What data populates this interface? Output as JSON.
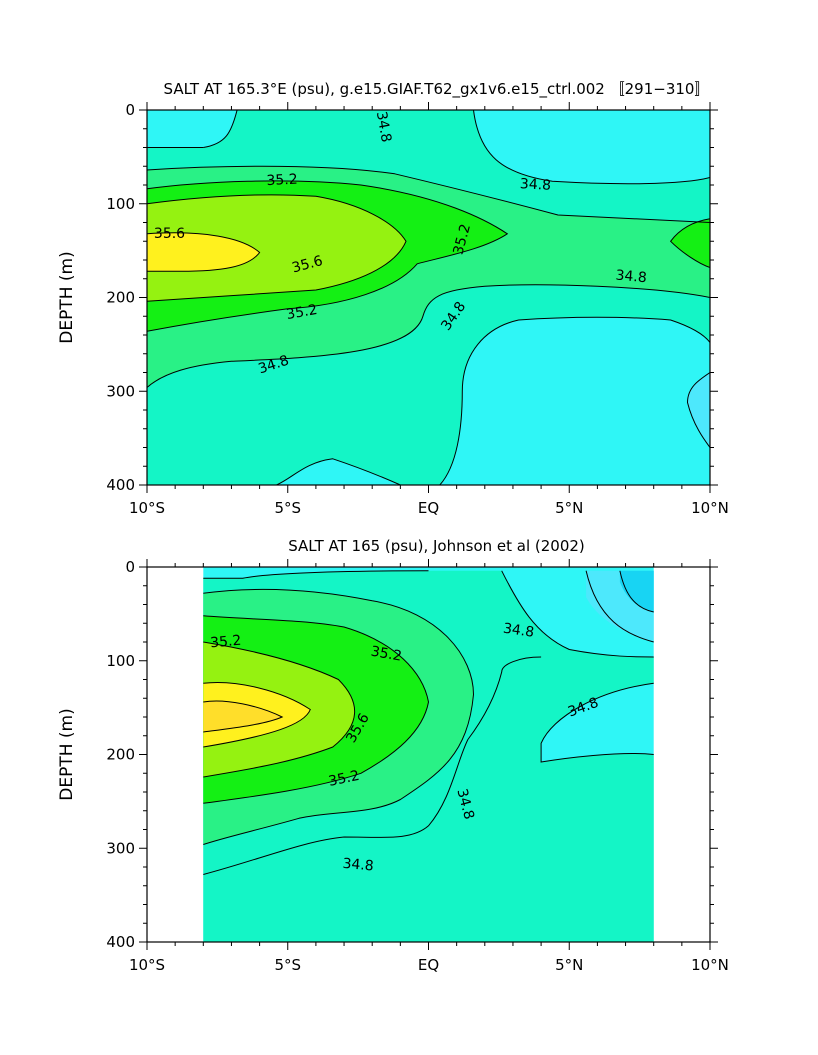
{
  "colors": {
    "below_34_8": "#2ff6f6",
    "34_8_to_35_0": "#14f5c6",
    "35_0_to_35_2": "#29f186",
    "35_2_to_35_4": "#14f014",
    "35_4_to_35_6": "#95f211",
    "35_6_to_35_8": "#fff11e",
    "above_35_8": "#ffde2a",
    "low_a": "#4de8fc",
    "low_b": "#18d4f3",
    "contour_line": "#000000"
  },
  "chart_data": [
    {
      "type": "heatmap",
      "title": "SALT AT 165.3°E (psu), g.e15.GIAF.T62_gx1v6.e15_ctrl.002 〚291−310〛",
      "xlabel": "",
      "ylabel": "DEPTH (m)",
      "xlim": [
        -10,
        10
      ],
      "ylim": [
        400,
        0
      ],
      "x_ticks": [
        -10,
        -5,
        0,
        5,
        10
      ],
      "x_tick_labels": [
        "10°S",
        "5°S",
        "EQ",
        "5°N",
        "10°N"
      ],
      "y_ticks": [
        0,
        100,
        200,
        300,
        400
      ],
      "y_tick_labels": [
        "0",
        "100",
        "200",
        "300",
        "400"
      ],
      "contour_levels": [
        34.8,
        35.0,
        35.2,
        35.4,
        35.6
      ],
      "contour_labels": [
        {
          "text": "34.8",
          "lat": -1.6,
          "depth": 18,
          "angle": 80
        },
        {
          "text": "35.2",
          "lat": -5.2,
          "depth": 75,
          "angle": -3
        },
        {
          "text": "34.8",
          "lat": 3.8,
          "depth": 80,
          "angle": 3
        },
        {
          "text": "35.6",
          "lat": -9.2,
          "depth": 132,
          "angle": 0
        },
        {
          "text": "35.2",
          "lat": 1.2,
          "depth": 138,
          "angle": -75
        },
        {
          "text": "35.6",
          "lat": -4.3,
          "depth": 165,
          "angle": -15
        },
        {
          "text": "34.8",
          "lat": 7.2,
          "depth": 178,
          "angle": 5
        },
        {
          "text": "35.2",
          "lat": -4.5,
          "depth": 216,
          "angle": -10
        },
        {
          "text": "34.8",
          "lat": 0.9,
          "depth": 220,
          "angle": -55
        },
        {
          "text": "34.8",
          "lat": -5.5,
          "depth": 272,
          "angle": -18
        }
      ]
    },
    {
      "type": "heatmap",
      "title": "SALT AT 165 (psu), Johnson et al (2002)",
      "xlabel": "",
      "ylabel": "DEPTH (m)",
      "xlim": [
        -10,
        10
      ],
      "ylim": [
        400,
        0
      ],
      "data_extent_lat": [
        -8,
        8
      ],
      "x_ticks": [
        -10,
        -5,
        0,
        5,
        10
      ],
      "x_tick_labels": [
        "10°S",
        "5°S",
        "EQ",
        "5°N",
        "10°N"
      ],
      "y_ticks": [
        0,
        100,
        200,
        300,
        400
      ],
      "y_tick_labels": [
        "0",
        "100",
        "200",
        "300",
        "400"
      ],
      "contour_levels": [
        34.8,
        35.0,
        35.2,
        35.4,
        35.6
      ],
      "contour_labels": [
        {
          "text": "35.2",
          "lat": -7.2,
          "depth": 80,
          "angle": -5
        },
        {
          "text": "34.8",
          "lat": 3.2,
          "depth": 68,
          "angle": 8
        },
        {
          "text": "35.2",
          "lat": -1.5,
          "depth": 93,
          "angle": 10
        },
        {
          "text": "34.8",
          "lat": 5.5,
          "depth": 150,
          "angle": -20
        },
        {
          "text": "35.6",
          "lat": -2.5,
          "depth": 172,
          "angle": -60
        },
        {
          "text": "35.2",
          "lat": -3.0,
          "depth": 226,
          "angle": -12
        },
        {
          "text": "34.8",
          "lat": 1.3,
          "depth": 253,
          "angle": 75
        },
        {
          "text": "34.8",
          "lat": -2.5,
          "depth": 318,
          "angle": 5
        }
      ]
    }
  ]
}
